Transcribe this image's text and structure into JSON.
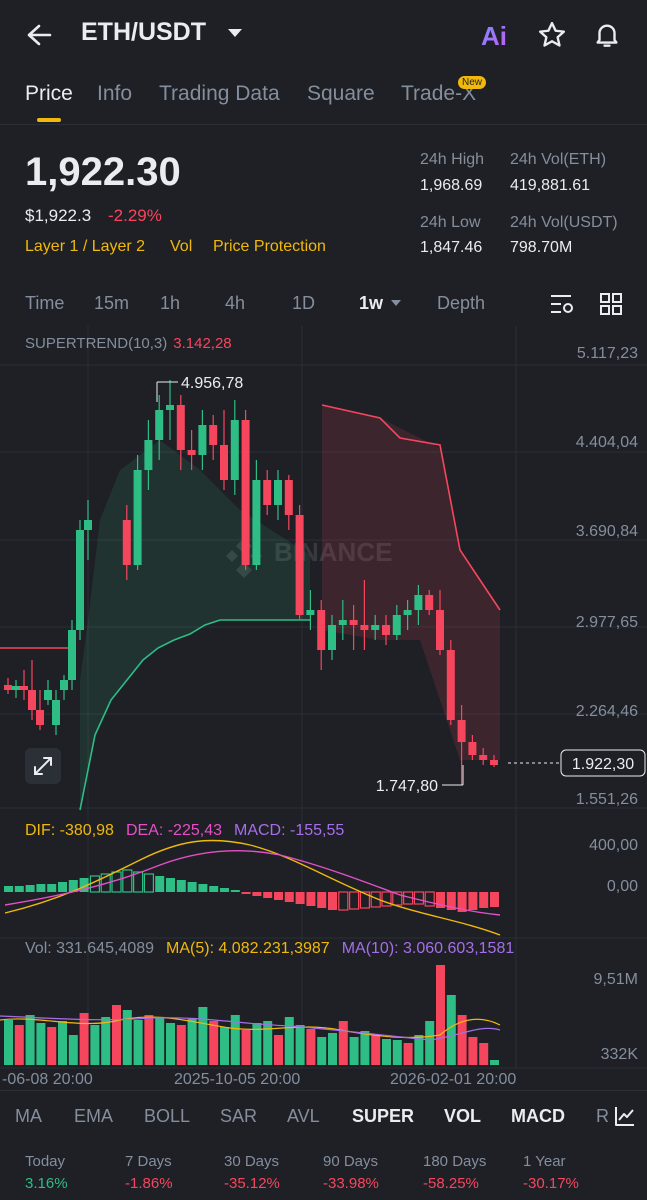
{
  "header": {
    "pair": "ETH/USDT",
    "icons": [
      "back-arrow-icon",
      "ai-icon",
      "star-icon",
      "bell-icon"
    ]
  },
  "tabs": [
    {
      "label": "Price",
      "active": true
    },
    {
      "label": "Info"
    },
    {
      "label": "Trading Data"
    },
    {
      "label": "Square"
    },
    {
      "label": "Trade-X",
      "badge": "New"
    }
  ],
  "summary": {
    "price": "1,922.30",
    "usd_price": "$1,922.3",
    "change": "-2.29%",
    "tags": [
      "Layer 1 / Layer 2",
      "Vol",
      "Price Protection"
    ],
    "high_label": "24h High",
    "high_value": "1,968.69",
    "vol_eth_label": "24h Vol(ETH)",
    "vol_eth_value": "419,881.61",
    "low_label": "24h Low",
    "low_value": "1,847.46",
    "vol_usdt_label": "24h Vol(USDT)",
    "vol_usdt_value": "798.70M"
  },
  "timeframes": [
    "Time",
    "15m",
    "1h",
    "4h",
    "1D",
    "1w",
    "Depth"
  ],
  "active_timeframe": "1w",
  "chart": {
    "supertrend_label": "SUPERTREND(10,3)",
    "supertrend_value": "3.142,28",
    "y_ticks": [
      "5.117,23",
      "4.404,04",
      "3.690,84",
      "2.977,65",
      "2.264,46",
      "1.551,26"
    ],
    "high_marker": "4.956,78",
    "low_marker": "1.747,80",
    "current_price": "1.922,30",
    "watermark": "BINANCE",
    "x_ticks": [
      "-06-08 20:00",
      "2025-10-05 20:00",
      "2026-02-01 20:00"
    ]
  },
  "macd": {
    "dif": "DIF: -380,98",
    "dea": "DEA: -225,43",
    "macd": "MACD: -155,55",
    "y_ticks": [
      "400,00",
      "0,00"
    ]
  },
  "volume": {
    "vol": "Vol: 331.645,4089",
    "ma5": "MA(5): 4.082.231,3987",
    "ma10": "MA(10): 3.060.603,1581",
    "y_ticks": [
      "9,51M",
      "332K"
    ]
  },
  "indicators": [
    {
      "label": "MA"
    },
    {
      "label": "EMA"
    },
    {
      "label": "BOLL"
    },
    {
      "label": "SAR"
    },
    {
      "label": "AVL"
    },
    {
      "label": "SUPER",
      "on": true
    },
    {
      "label": "VOL",
      "on": true
    },
    {
      "label": "MACD",
      "on": true
    },
    {
      "label": "R"
    }
  ],
  "performance": [
    {
      "label": "Today",
      "value": "3.16%"
    },
    {
      "label": "7 Days",
      "value": "-1.86%"
    },
    {
      "label": "30 Days",
      "value": "-35.12%"
    },
    {
      "label": "90 Days",
      "value": "-33.98%"
    },
    {
      "label": "180 Days",
      "value": "-58.25%"
    },
    {
      "label": "1 Year",
      "value": "-30.17%"
    }
  ],
  "colors": {
    "up": "#2ebd85",
    "down": "#f6465d",
    "accent": "#f0b90b",
    "macd": "#a66ee8",
    "dea": "#e64fc6"
  }
}
